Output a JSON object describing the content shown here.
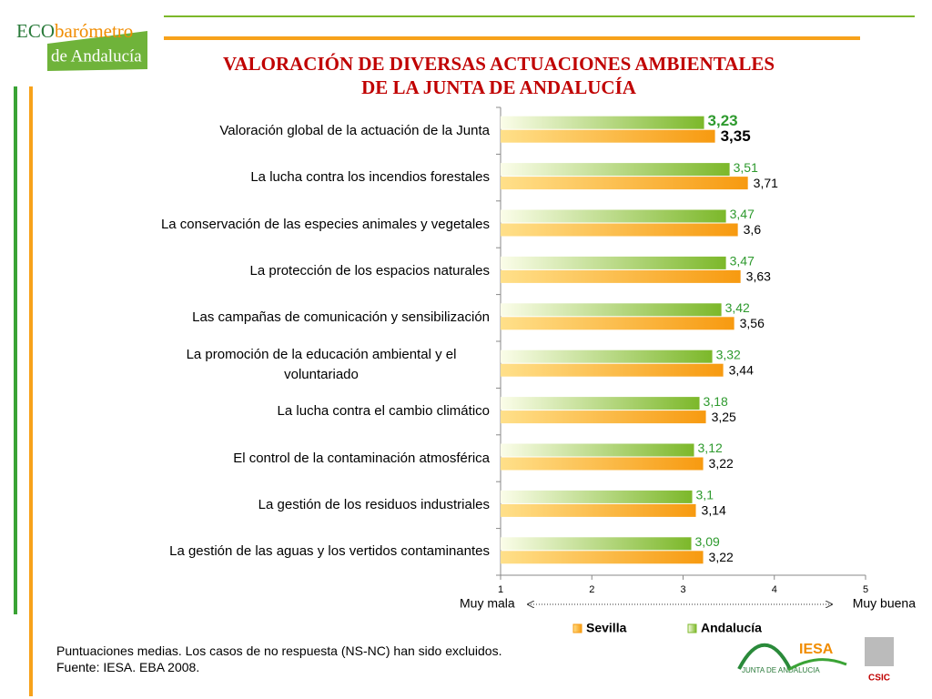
{
  "logos": {
    "eco": "ECO",
    "barometro": "barómetro",
    "region": "de Andalucía",
    "junta": "JUNTA DE ANDALUCIA",
    "iesa": "IESA",
    "csic": "CSIC"
  },
  "chart_data": {
    "type": "bar",
    "orientation": "horizontal",
    "title": "VALORACIÓN DE DIVERSAS ACTUACIONES AMBIENTALES",
    "subtitle": "DE LA JUNTA DE ANDALUCÍA",
    "categories": [
      "Valoración global de la actuación de la Junta",
      "La lucha contra los incendios forestales",
      "La conservación de las especies animales y vegetales",
      "La protección de los espacios naturales",
      "Las campañas de comunicación y sensibilización",
      "La promoción de la educación ambiental y el voluntariado",
      "La lucha contra el cambio climático",
      "El control de la contaminación atmosférica",
      "La gestión de los residuos industriales",
      "La gestión de las aguas y los vertidos contaminantes"
    ],
    "series": [
      {
        "name": "Andalucía",
        "color": "#7cb82a",
        "values": [
          3.23,
          3.51,
          3.47,
          3.47,
          3.42,
          3.32,
          3.18,
          3.12,
          3.1,
          3.09
        ],
        "value_labels": [
          "3,23",
          "3,51",
          "3,47",
          "3,47",
          "3,42",
          "3,32",
          "3,18",
          "3,12",
          "3,1",
          "3,09"
        ]
      },
      {
        "name": "Sevilla",
        "color": "#f79a10",
        "values": [
          3.35,
          3.71,
          3.6,
          3.63,
          3.56,
          3.44,
          3.25,
          3.22,
          3.14,
          3.22
        ],
        "value_labels": [
          "3,35",
          "3,71",
          "3,6",
          "3,63",
          "3,56",
          "3,44",
          "3,25",
          "3,22",
          "3,14",
          "3,22"
        ]
      }
    ],
    "xlim": [
      1,
      5
    ],
    "xticks": [
      1,
      2,
      3,
      4,
      5
    ],
    "x_label_left": "Muy mala",
    "x_label_right": "Muy buena",
    "legend_order": [
      1,
      0
    ],
    "footnotes": [
      "Puntuaciones medias. Los casos de no respuesta (NS-NC) han sido excluidos.",
      "Fuente: IESA. EBA 2008."
    ]
  }
}
